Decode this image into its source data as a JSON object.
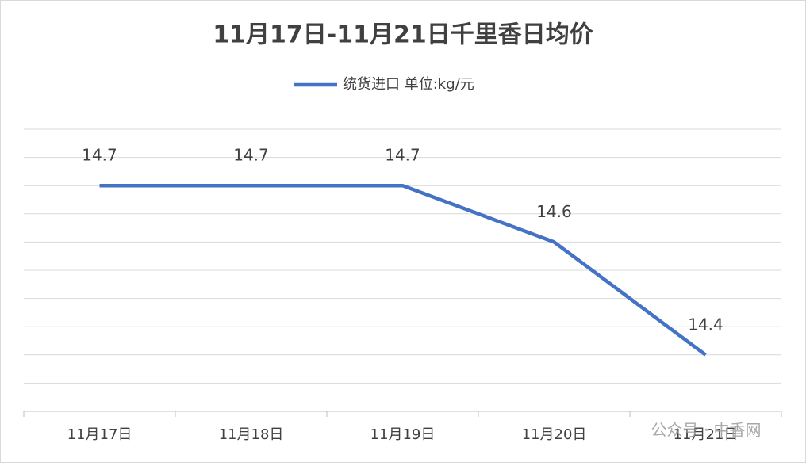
{
  "chart_data": {
    "type": "line",
    "title": "11月17日-11月21日千里香日均价",
    "categories": [
      "11月17日",
      "11月18日",
      "11月19日",
      "11月20日",
      "11月21日"
    ],
    "series": [
      {
        "name": "统货进口 单位:kg/元",
        "color": "#4472c4",
        "values": [
          14.7,
          14.7,
          14.7,
          14.6,
          14.4
        ]
      }
    ],
    "ylim": [
      14.3,
      14.8
    ],
    "yticks": [
      14.3,
      14.35,
      14.4,
      14.45,
      14.5,
      14.55,
      14.6,
      14.65,
      14.7,
      14.75,
      14.8
    ],
    "grid": true,
    "legend": "top"
  },
  "watermark": "公众号 · 中香网"
}
